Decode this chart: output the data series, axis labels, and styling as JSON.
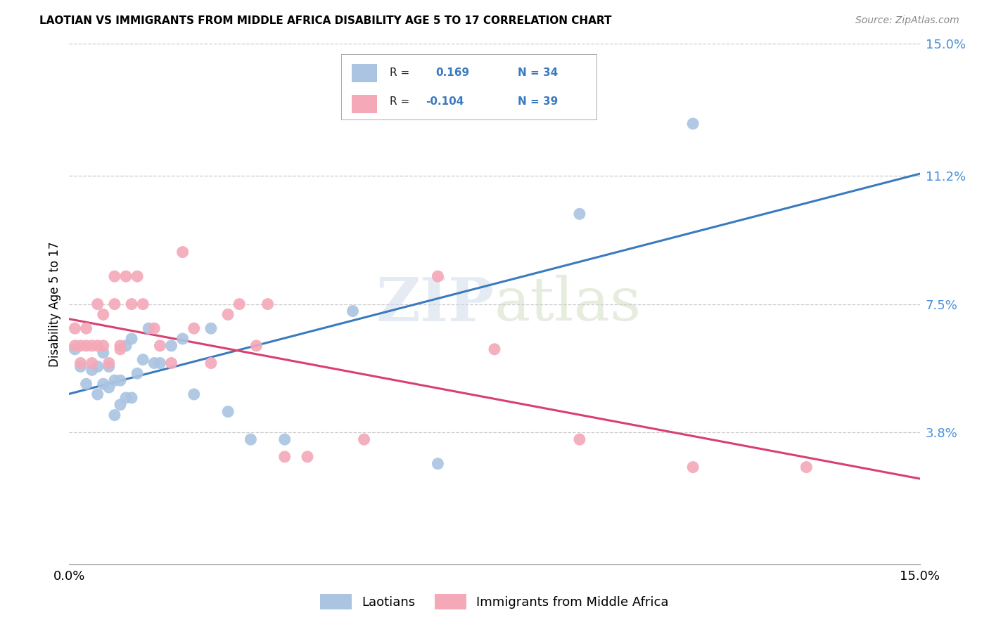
{
  "title": "LAOTIAN VS IMMIGRANTS FROM MIDDLE AFRICA DISABILITY AGE 5 TO 17 CORRELATION CHART",
  "source": "Source: ZipAtlas.com",
  "ylabel": "Disability Age 5 to 17",
  "x_min": 0.0,
  "x_max": 0.15,
  "y_min": 0.0,
  "y_max": 0.15,
  "y_ticks": [
    0.038,
    0.075,
    0.112,
    0.15
  ],
  "y_tick_labels": [
    "3.8%",
    "7.5%",
    "11.2%",
    "15.0%"
  ],
  "x_tick_labels": [
    "0.0%",
    "15.0%"
  ],
  "watermark": "ZIPatlas",
  "legend_labels": [
    "Laotians",
    "Immigrants from Middle Africa"
  ],
  "series1_color": "#aac4e2",
  "series2_color": "#f4a8b8",
  "trend1_color": "#3a7abf",
  "trend2_color": "#d94070",
  "R1": "0.169",
  "N1": "34",
  "R2": "-0.104",
  "N2": "39",
  "series1_x": [
    0.001,
    0.002,
    0.003,
    0.004,
    0.005,
    0.005,
    0.006,
    0.006,
    0.007,
    0.007,
    0.008,
    0.008,
    0.009,
    0.009,
    0.01,
    0.01,
    0.011,
    0.011,
    0.012,
    0.013,
    0.014,
    0.015,
    0.016,
    0.018,
    0.02,
    0.022,
    0.025,
    0.028,
    0.032,
    0.038,
    0.05,
    0.065,
    0.09,
    0.11
  ],
  "series1_y": [
    0.062,
    0.057,
    0.052,
    0.056,
    0.049,
    0.057,
    0.052,
    0.061,
    0.051,
    0.057,
    0.053,
    0.043,
    0.046,
    0.053,
    0.048,
    0.063,
    0.048,
    0.065,
    0.055,
    0.059,
    0.068,
    0.058,
    0.058,
    0.063,
    0.065,
    0.049,
    0.068,
    0.044,
    0.036,
    0.036,
    0.073,
    0.029,
    0.101,
    0.127
  ],
  "series2_x": [
    0.001,
    0.001,
    0.002,
    0.002,
    0.003,
    0.003,
    0.004,
    0.004,
    0.005,
    0.005,
    0.006,
    0.006,
    0.007,
    0.008,
    0.008,
    0.009,
    0.009,
    0.01,
    0.011,
    0.012,
    0.013,
    0.015,
    0.016,
    0.018,
    0.02,
    0.022,
    0.025,
    0.028,
    0.03,
    0.033,
    0.035,
    0.038,
    0.042,
    0.052,
    0.065,
    0.075,
    0.09,
    0.11,
    0.13
  ],
  "series2_y": [
    0.063,
    0.068,
    0.058,
    0.063,
    0.063,
    0.068,
    0.058,
    0.063,
    0.063,
    0.075,
    0.063,
    0.072,
    0.058,
    0.075,
    0.083,
    0.062,
    0.063,
    0.083,
    0.075,
    0.083,
    0.075,
    0.068,
    0.063,
    0.058,
    0.09,
    0.068,
    0.058,
    0.072,
    0.075,
    0.063,
    0.075,
    0.031,
    0.031,
    0.036,
    0.083,
    0.062,
    0.036,
    0.028,
    0.028
  ]
}
